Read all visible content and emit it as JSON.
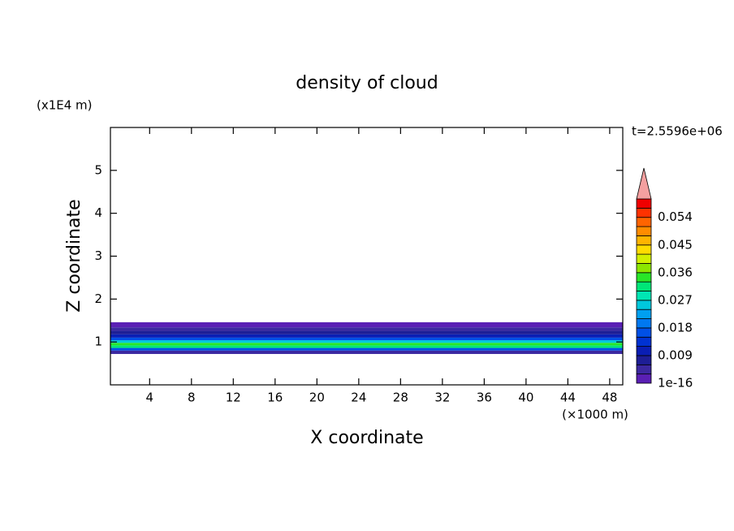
{
  "chart_data": {
    "type": "contour",
    "title": "density of cloud",
    "xlabel": "X coordinate",
    "ylabel": "Z coordinate",
    "x_unit": "(×1000 m)",
    "y_unit": "(x1E4 m)",
    "annotation": "t=2.5596e+06",
    "xlim": [
      0.25,
      49.25
    ],
    "xticks": [
      4,
      8,
      12,
      16,
      20,
      24,
      28,
      32,
      36,
      40,
      44,
      48
    ],
    "ylim": [
      0,
      6
    ],
    "yticks": [
      1,
      2,
      3,
      4,
      5
    ],
    "z_edges": [
      0.72,
      0.8,
      0.86,
      0.92,
      0.98,
      1.04,
      1.1,
      1.18,
      1.26,
      1.34,
      1.46
    ],
    "values": [
      0.004,
      0.016,
      0.03,
      0.034,
      0.026,
      0.016,
      0.01,
      0.006,
      0.003,
      0.001
    ],
    "colorbar": {
      "levels": [
        1e-16,
        0.003,
        0.006,
        0.009,
        0.012,
        0.015,
        0.018,
        0.021,
        0.024,
        0.027,
        0.03,
        0.033,
        0.036,
        0.039,
        0.042,
        0.045,
        0.048,
        0.051,
        0.054,
        0.057,
        0.06
      ],
      "colors": [
        "#5a1fb4",
        "#3c28a0",
        "#1e1e96",
        "#0a1eb4",
        "#0032d2",
        "#0050e6",
        "#0078f0",
        "#00a0f0",
        "#00c8dc",
        "#00e6b4",
        "#00e678",
        "#28e628",
        "#8ce600",
        "#d2f000",
        "#ffdc00",
        "#ffb400",
        "#ff8c00",
        "#ff6400",
        "#ff3200",
        "#f00000"
      ],
      "over_color": "#f4a0a0",
      "ticks": [
        1e-16,
        0.009,
        0.018,
        0.027,
        0.036,
        0.045,
        0.054
      ]
    }
  }
}
